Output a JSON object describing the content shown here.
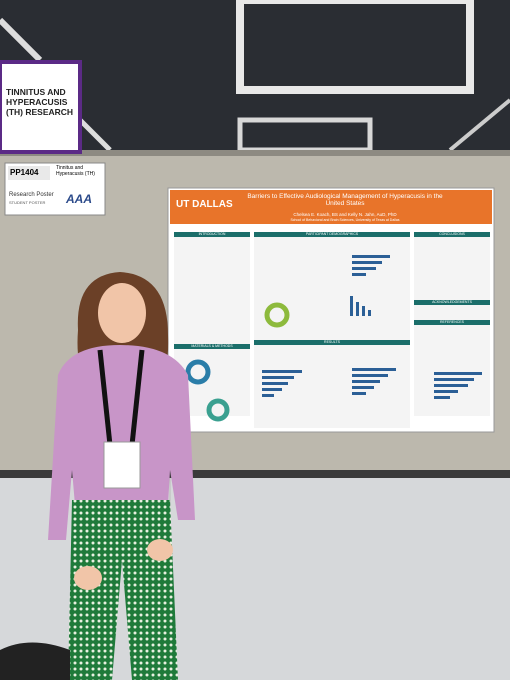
{
  "sign": {
    "title": "TINNITUS AND HYPERACUSIS (TH) RESEARCH"
  },
  "label_card": {
    "number": "PP1404",
    "topic": "Tinnitus and Hyperacusis (TH)",
    "kind": "Research Poster",
    "category": "STUDENT POSTER",
    "logo": "AAA"
  },
  "poster": {
    "title": "Barriers to Effective Audiological Management of Hyperacusis in the United States",
    "logo": "UT DALLAS",
    "authors": "Chelsea E. Koach, BS and Kelly N. Jahn, AuD, PhD",
    "affiliation": "School of Behavioral and Brain Sciences, University of Texas at Dallas",
    "sections": [
      "INTRODUCTION",
      "PARTICIPANT DEMOGRAPHICS",
      "CONCLUSIONS",
      "MATERIALS & METHODS",
      "RESULTS",
      "ACKNOWLEDGEMENTS",
      "REFERENCES"
    ]
  }
}
